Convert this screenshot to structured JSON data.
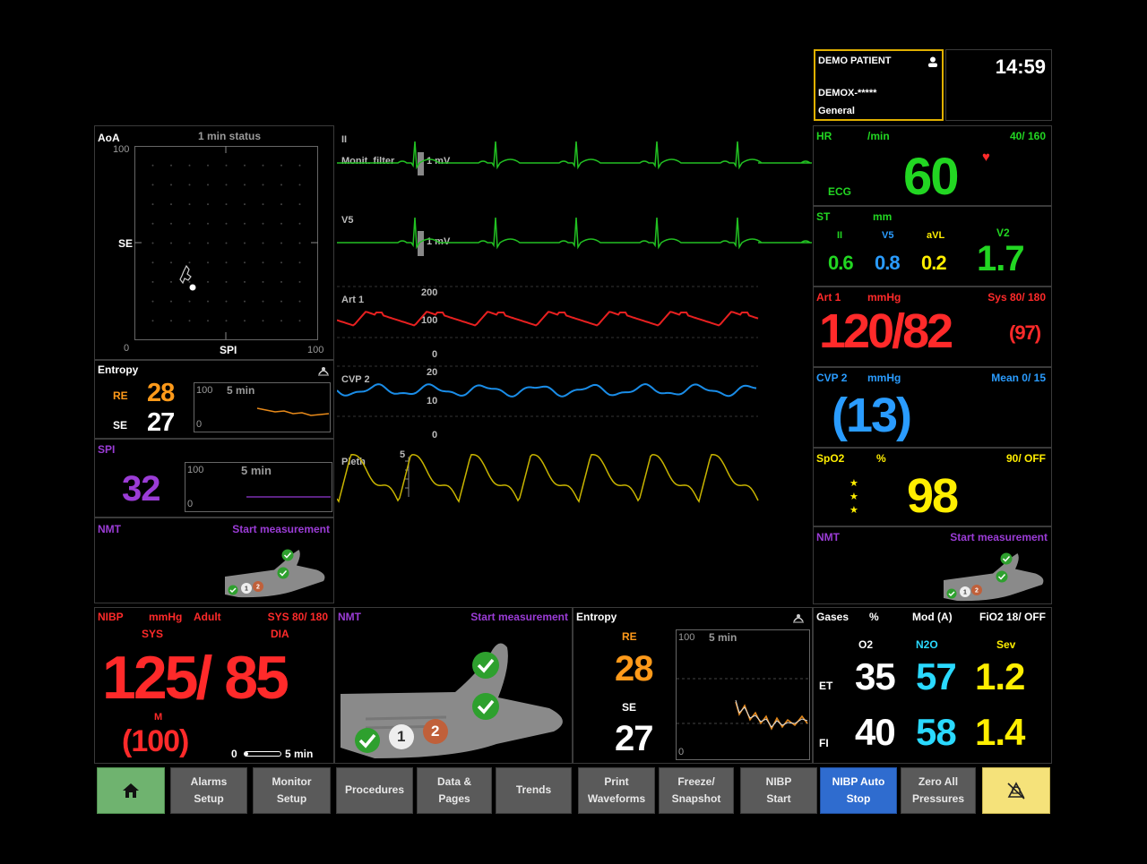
{
  "patient": {
    "name": "DEMO PATIENT",
    "id": "DEMOX-*****",
    "category": "General",
    "time": "14:59"
  },
  "aoa": {
    "title": "AoA",
    "status": "1 min status",
    "y_max": "100",
    "y_mid": "SE",
    "origin": "0",
    "x_label": "SPI",
    "x_max": "100"
  },
  "entropy_small": {
    "title": "Entropy",
    "re_label": "RE",
    "re_value": "28",
    "se_label": "SE",
    "se_value": "27",
    "trend_max": "100",
    "trend_span": "5 min",
    "trend_min": "0"
  },
  "spi": {
    "title": "SPI",
    "value": "32",
    "trend_max": "100",
    "trend_span": "5 min",
    "trend_min": "0"
  },
  "nmt_small": {
    "title": "NMT",
    "action": "Start measurement"
  },
  "waves": {
    "ecg1": {
      "label": "II",
      "filter": "Monit. filter",
      "scale": "1 mV"
    },
    "ecg2": {
      "label": "V5",
      "scale": "1 mV"
    },
    "art": {
      "label": "Art 1",
      "s200": "200",
      "s100": "100",
      "s0": "0"
    },
    "cvp": {
      "label": "CVP 2",
      "s20": "20",
      "s10": "10",
      "s0": "0"
    },
    "pleth": {
      "label": "Pleth",
      "scale": "5"
    }
  },
  "hr": {
    "title": "HR",
    "unit": "/min",
    "limits": "40/ 160",
    "source": "ECG",
    "value": "60"
  },
  "st": {
    "title": "ST",
    "unit": "mm",
    "leads": [
      {
        "name": "II",
        "value": "0.6",
        "color": "#22d622"
      },
      {
        "name": "V5",
        "value": "0.8",
        "color": "#2a9cff"
      },
      {
        "name": "aVL",
        "value": "0.2",
        "color": "#ffee00"
      },
      {
        "name": "V2",
        "value": "1.7",
        "color": "#22d622"
      }
    ]
  },
  "art1": {
    "title": "Art 1",
    "unit": "mmHg",
    "limits": "Sys 80/ 180",
    "value": "120/82",
    "mean": "(97)"
  },
  "cvp2": {
    "title": "CVP 2",
    "unit": "mmHg",
    "limits": "Mean 0/ 15",
    "value": "(13)"
  },
  "spo2": {
    "title": "SpO2",
    "unit": "%",
    "limits": "90/ OFF",
    "value": "98",
    "quality": "★\n★\n★"
  },
  "nmt_right": {
    "title": "NMT",
    "action": "Start measurement"
  },
  "nibp": {
    "title": "NIBP",
    "unit": "mmHg",
    "mode": "Adult",
    "limits": "SYS 80/ 180",
    "sys_label": "SYS",
    "dia_label": "DIA",
    "value": "125/ 85",
    "mean_label": "M",
    "mean": "(100)",
    "cycle_start": "0",
    "cycle_end": "5 min",
    "cycle_progress": 0.1
  },
  "nmt_bottom": {
    "title": "NMT",
    "action": "Start measurement",
    "count1": "1",
    "count2": "2"
  },
  "entropy_bottom": {
    "title": "Entropy",
    "re_label": "RE",
    "re_value": "28",
    "se_label": "SE",
    "se_value": "27",
    "trend_max": "100",
    "trend_span": "5 min",
    "trend_min": "0"
  },
  "gases": {
    "title": "Gases",
    "unit": "%",
    "mode": "Mod (A)",
    "fio2": "FiO2 18/ OFF",
    "cols": [
      "O2",
      "N2O",
      "Sev"
    ],
    "et_label": "ET",
    "fi_label": "FI",
    "et": [
      "35",
      "57",
      "1.2"
    ],
    "fi": [
      "40",
      "58",
      "1.4"
    ],
    "colors": [
      "#ffffff",
      "#2ad9ff",
      "#ffee00"
    ]
  },
  "buttons": [
    {
      "label": ""
    },
    {
      "label": "Alarms\nSetup"
    },
    {
      "label": "Monitor\nSetup"
    },
    {
      "label": "Procedures"
    },
    {
      "label": "Data &\nPages"
    },
    {
      "label": "Trends"
    },
    {
      "label": "Print\nWaveforms"
    },
    {
      "label": "Freeze/\nSnapshot"
    },
    {
      "label": "NIBP\nStart"
    },
    {
      "label": "NIBP Auto\nStop"
    },
    {
      "label": "Zero All\nPressures"
    },
    {
      "label": ""
    }
  ],
  "colors": {
    "home": "#6fb36f",
    "nibp_auto": "#2f6ccf",
    "silence": "#f5e27a",
    "button": "#5a5a5a"
  }
}
